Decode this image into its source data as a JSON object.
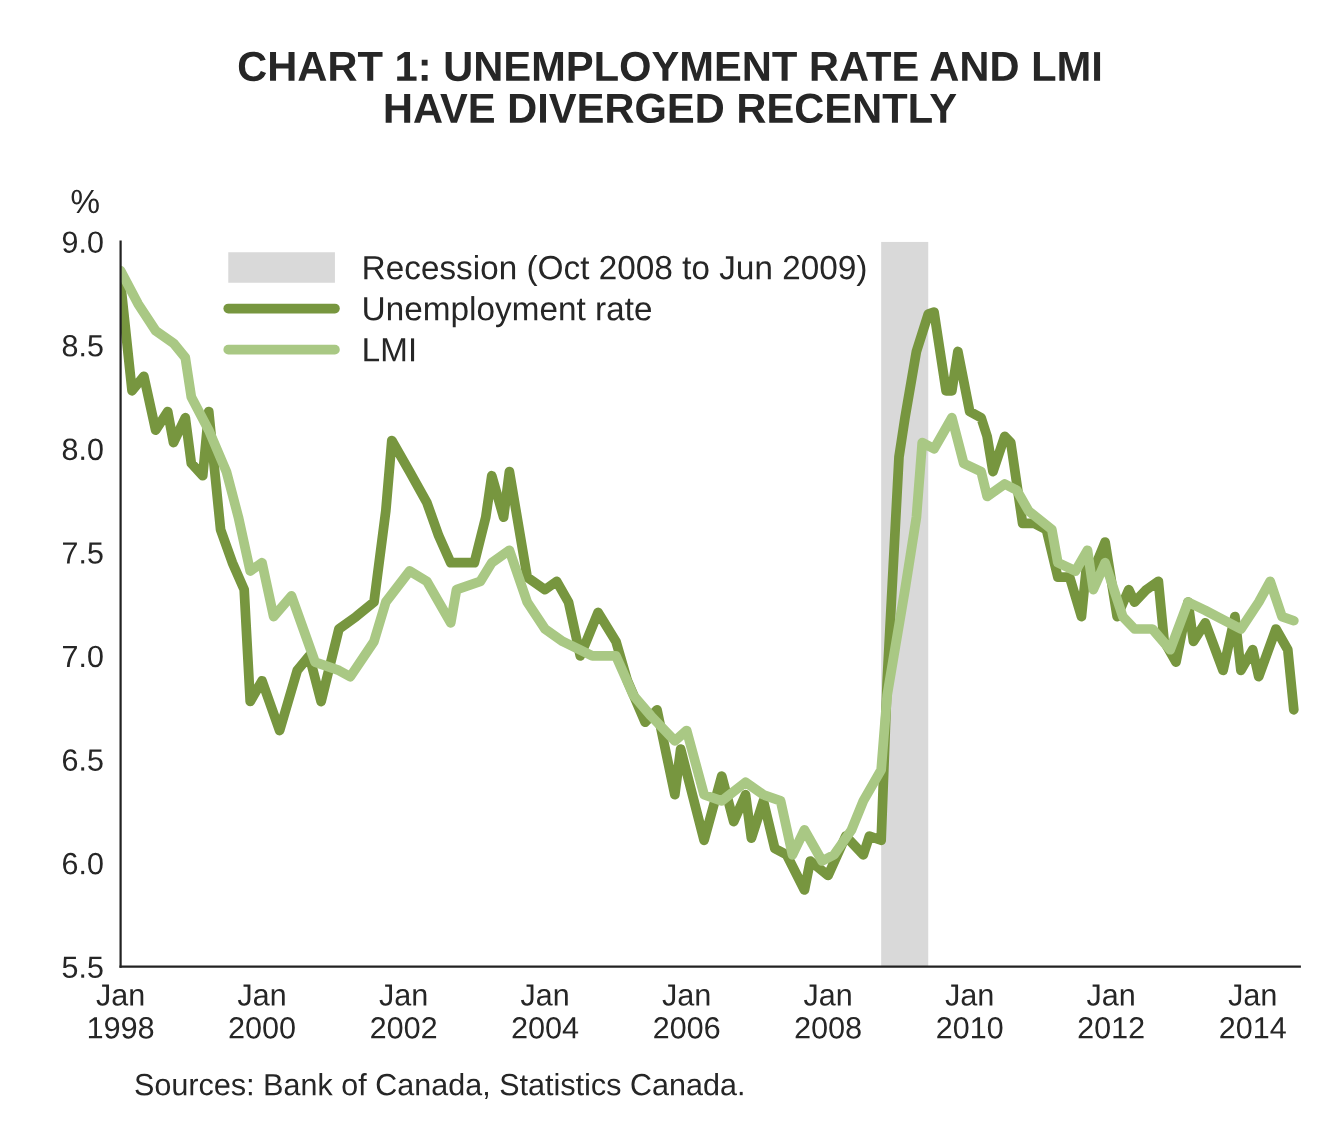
{
  "chart_data": {
    "type": "line",
    "title": "CHART 1: UNEMPLOYMENT RATE AND LMI\nHAVE DIVERGED RECENTLY",
    "ylabel": "%",
    "annotations": [
      "Sources: Bank of Canada, Statistics Canada."
    ],
    "xlim": [
      "1998-01",
      "2014-09"
    ],
    "xticks": [
      {
        "value": "1998-01",
        "label": "Jan\n1998"
      },
      {
        "value": "2000-01",
        "label": "Jan\n2000"
      },
      {
        "value": "2002-01",
        "label": "Jan\n2002"
      },
      {
        "value": "2004-01",
        "label": "Jan\n2004"
      },
      {
        "value": "2006-01",
        "label": "Jan\n2006"
      },
      {
        "value": "2008-01",
        "label": "Jan\n2008"
      },
      {
        "value": "2010-01",
        "label": "Jan\n2010"
      },
      {
        "value": "2012-01",
        "label": "Jan\n2012"
      },
      {
        "value": "2014-01",
        "label": "Jan\n2014"
      }
    ],
    "ylim": [
      5.5,
      9.0
    ],
    "yticks": [
      5.5,
      {
        "value": 6,
        "label": "6.0"
      },
      6.5,
      {
        "value": 7,
        "label": "7.0"
      },
      7.5,
      {
        "value": 8,
        "label": "8.0"
      },
      8.5,
      {
        "value": 9,
        "label": "9.0"
      }
    ],
    "bands": [
      {
        "axis": "x",
        "from": "2008-10",
        "to": "2009-06",
        "label": "Recession (Oct 2008 to Jun 2009)",
        "color": "#d9d9d9"
      }
    ],
    "legend": "top left",
    "line_style": "solid",
    "series": [
      {
        "name": "Unemployment rate",
        "color": "#77963f",
        "x": [
          "1998-01",
          "1998-03",
          "1998-05",
          "1998-07",
          "1998-09",
          "1998-10",
          "1998-12",
          "1999-01",
          "1999-03",
          "1999-04",
          "1999-06",
          "1999-08",
          "1999-10",
          "1999-11",
          "2000-01",
          "2000-04",
          "2000-07",
          "2000-09",
          "2000-11",
          "2001-02",
          "2001-05",
          "2001-08",
          "2001-10",
          "2001-11",
          "2002-02",
          "2002-05",
          "2002-07",
          "2002-09",
          "2003-01",
          "2003-03",
          "2003-04",
          "2003-06",
          "2003-07",
          "2003-10",
          "2004-01",
          "2004-03",
          "2004-05",
          "2004-07",
          "2004-08",
          "2004-10",
          "2005-01",
          "2005-03",
          "2005-06",
          "2005-08",
          "2005-11",
          "2005-12",
          "2006-04",
          "2006-07",
          "2006-09",
          "2006-11",
          "2006-12",
          "2007-02",
          "2007-04",
          "2007-06",
          "2007-09",
          "2007-10",
          "2008-01",
          "2008-04",
          "2008-07",
          "2008-08",
          "2008-10",
          "2008-11",
          "2009-01",
          "2009-02",
          "2009-04",
          "2009-06",
          "2009-07",
          "2009-09",
          "2009-10",
          "2009-11",
          "2010-01",
          "2010-03",
          "2010-04",
          "2010-05",
          "2010-07",
          "2010-08",
          "2010-10",
          "2010-12",
          "2011-02",
          "2011-04",
          "2011-06",
          "2011-08",
          "2011-09",
          "2011-10",
          "2011-12",
          "2012-02",
          "2012-04",
          "2012-05",
          "2012-07",
          "2012-09",
          "2012-10",
          "2012-12",
          "2013-02",
          "2013-03",
          "2013-05",
          "2013-08",
          "2013-10",
          "2013-11",
          "2014-01",
          "2014-02",
          "2014-05",
          "2014-07",
          "2014-08"
        ],
        "values": [
          8.8,
          8.28,
          8.35,
          8.09,
          8.18,
          8.03,
          8.15,
          7.93,
          7.87,
          8.18,
          7.61,
          7.45,
          7.32,
          6.78,
          6.88,
          6.64,
          6.93,
          7.0,
          6.78,
          7.13,
          7.19,
          7.26,
          7.7,
          8.04,
          7.89,
          7.74,
          7.58,
          7.45,
          7.45,
          7.67,
          7.87,
          7.67,
          7.89,
          7.38,
          7.32,
          7.36,
          7.26,
          7.0,
          7.07,
          7.21,
          7.07,
          6.88,
          6.68,
          6.74,
          6.33,
          6.55,
          6.11,
          6.42,
          6.2,
          6.33,
          6.12,
          6.3,
          6.07,
          6.04,
          5.87,
          6.01,
          5.94,
          6.13,
          6.04,
          6.13,
          6.11,
          6.88,
          7.96,
          8.15,
          8.47,
          8.65,
          8.66,
          8.28,
          8.28,
          8.47,
          8.18,
          8.15,
          8.06,
          7.89,
          8.06,
          8.03,
          7.64,
          7.64,
          7.61,
          7.38,
          7.38,
          7.19,
          7.48,
          7.41,
          7.55,
          7.19,
          7.32,
          7.26,
          7.32,
          7.36,
          7.07,
          6.97,
          7.26,
          7.07,
          7.16,
          6.93,
          7.19,
          6.93,
          7.03,
          6.9,
          7.13,
          7.03,
          6.74
        ]
      },
      {
        "name": "LMI",
        "color": "#a9c884",
        "x": [
          "1998-01",
          "1998-04",
          "1998-07",
          "1998-10",
          "1998-12",
          "1999-01",
          "1999-04",
          "1999-07",
          "1999-09",
          "1999-11",
          "2000-01",
          "2000-03",
          "2000-06",
          "2000-08",
          "2000-10",
          "2001-02",
          "2001-04",
          "2001-08",
          "2001-10",
          "2002-02",
          "2002-05",
          "2002-09",
          "2002-10",
          "2003-02",
          "2003-04",
          "2003-07",
          "2003-10",
          "2004-01",
          "2004-04",
          "2004-09",
          "2005-01",
          "2005-04",
          "2005-07",
          "2005-11",
          "2006-01",
          "2006-04",
          "2006-07",
          "2006-11",
          "2007-02",
          "2007-05",
          "2007-07",
          "2007-09",
          "2007-12",
          "2008-02",
          "2008-05",
          "2008-07",
          "2008-10",
          "2008-11",
          "2009-02",
          "2009-04",
          "2009-05",
          "2009-07",
          "2009-10",
          "2009-12",
          "2010-03",
          "2010-04",
          "2010-07",
          "2010-09",
          "2010-11",
          "2011-03",
          "2011-04",
          "2011-07",
          "2011-09",
          "2011-10",
          "2011-12",
          "2012-03",
          "2012-05",
          "2012-08",
          "2012-11",
          "2013-02",
          "2013-05",
          "2013-07",
          "2013-11",
          "2014-02",
          "2014-04",
          "2014-06",
          "2014-08"
        ],
        "values": [
          8.86,
          8.7,
          8.57,
          8.51,
          8.44,
          8.25,
          8.09,
          7.89,
          7.67,
          7.41,
          7.45,
          7.19,
          7.29,
          7.13,
          6.97,
          6.93,
          6.9,
          7.07,
          7.26,
          7.41,
          7.36,
          7.16,
          7.32,
          7.36,
          7.45,
          7.51,
          7.26,
          7.13,
          7.07,
          7.0,
          7.0,
          6.81,
          6.71,
          6.59,
          6.64,
          6.33,
          6.3,
          6.39,
          6.33,
          6.3,
          6.04,
          6.16,
          6.01,
          6.04,
          6.16,
          6.3,
          6.45,
          6.81,
          7.32,
          7.67,
          8.03,
          8.0,
          8.15,
          7.93,
          7.89,
          7.77,
          7.83,
          7.8,
          7.7,
          7.61,
          7.45,
          7.41,
          7.51,
          7.32,
          7.45,
          7.19,
          7.13,
          7.13,
          7.03,
          7.26,
          7.22,
          7.19,
          7.13,
          7.26,
          7.36,
          7.19,
          7.17
        ]
      }
    ]
  }
}
